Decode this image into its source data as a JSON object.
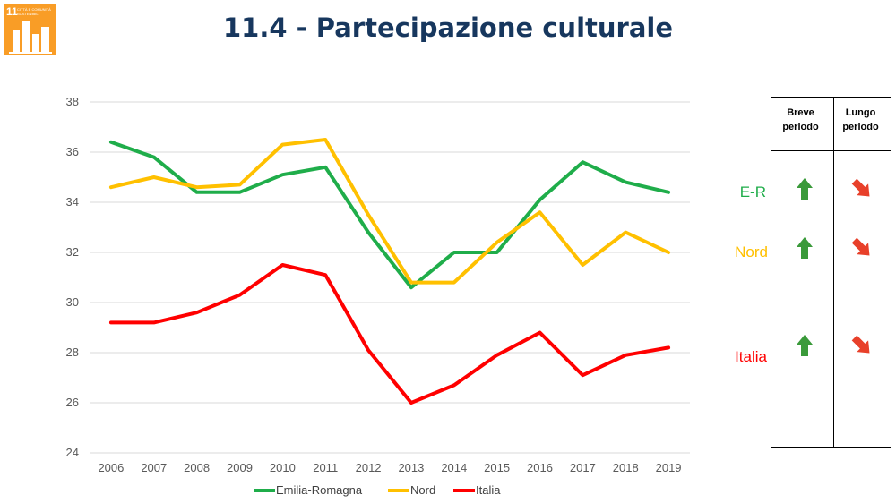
{
  "header": {
    "title": "11.4 - Partecipazione culturale",
    "logo_number": "11",
    "logo_text": "CITTÀ E COMUNITÀ SOSTENIBILI",
    "logo_color": "#f99d26"
  },
  "chart_data": {
    "type": "line",
    "x": [
      "2006",
      "2007",
      "2008",
      "2009",
      "2010",
      "2011",
      "2012",
      "2013",
      "2014",
      "2015",
      "2016",
      "2017",
      "2018",
      "2019"
    ],
    "ylim": [
      24,
      38
    ],
    "yticks": [
      24,
      26,
      28,
      30,
      32,
      34,
      36,
      38
    ],
    "grid": true,
    "legend_position": "bottom",
    "series": [
      {
        "name": "Emilia-Romagna",
        "color": "#1fad4a",
        "values": [
          36.4,
          35.8,
          34.4,
          34.4,
          35.1,
          35.4,
          32.8,
          30.6,
          32.0,
          32.0,
          34.1,
          35.6,
          34.8,
          34.4
        ]
      },
      {
        "name": "Nord",
        "color": "#ffc000",
        "values": [
          34.6,
          35.0,
          34.6,
          34.7,
          36.3,
          36.5,
          33.5,
          30.8,
          30.8,
          32.4,
          33.6,
          31.5,
          32.8,
          32.0
        ]
      },
      {
        "name": "Italia",
        "color": "#ff0000",
        "values": [
          29.2,
          29.2,
          29.6,
          30.3,
          31.5,
          31.1,
          28.1,
          26.0,
          26.7,
          27.9,
          28.8,
          27.1,
          27.9,
          28.2
        ]
      }
    ]
  },
  "trend_table": {
    "columns": [
      "Breve periodo",
      "Lungo periodo"
    ],
    "rows": [
      {
        "label": "E-R",
        "color": "#1fad4a",
        "short": "up-arrow-icon",
        "long": "down-right-arrow-icon"
      },
      {
        "label": "Nord",
        "color": "#ffc000",
        "short": "up-arrow-icon",
        "long": "down-right-arrow-icon"
      },
      {
        "label": "Italia",
        "color": "#ff0000",
        "short": "up-arrow-icon",
        "long": "down-right-arrow-icon"
      }
    ],
    "up_color": "#3a9a3a",
    "down_color": "#e8402a"
  }
}
